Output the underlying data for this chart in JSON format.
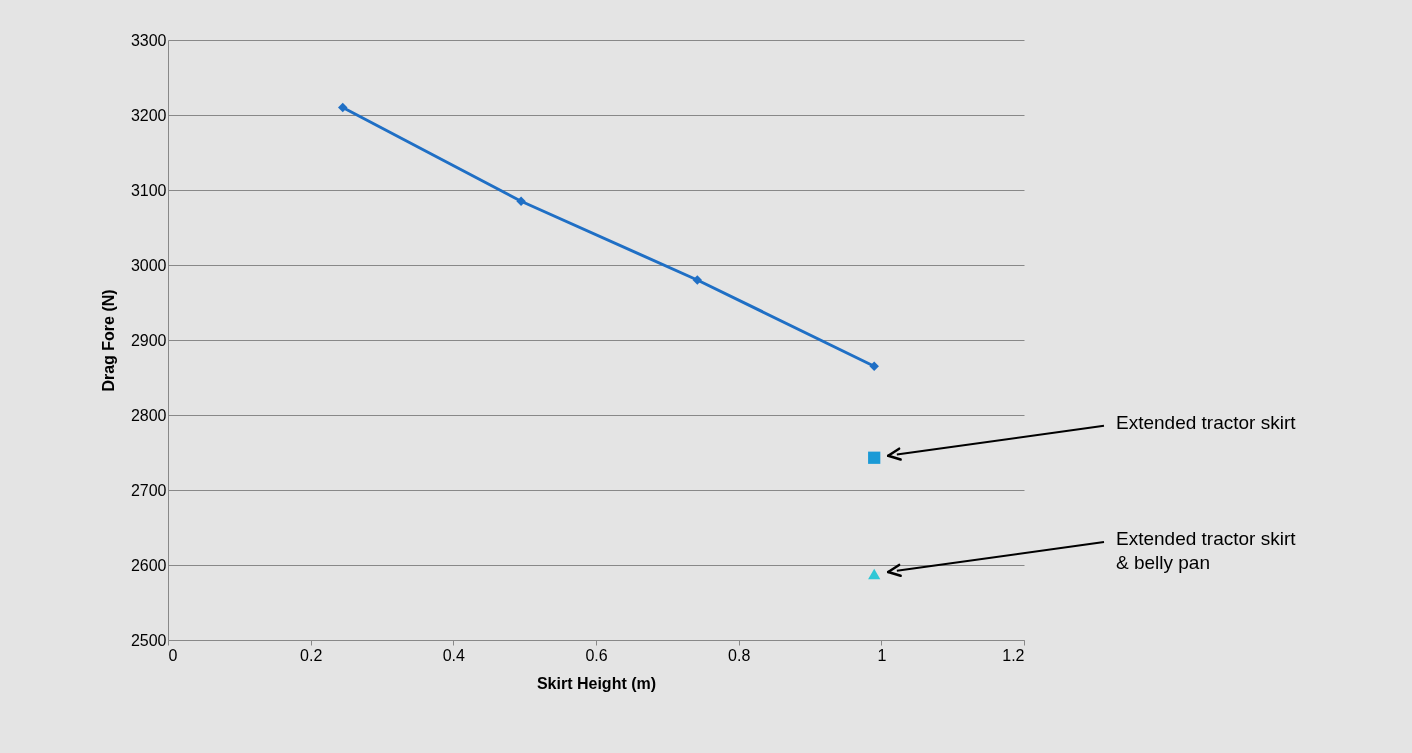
{
  "chart_data": {
    "type": "line",
    "xlabel": "Skirt Height (m)",
    "ylabel": "Drag Fore (N)",
    "xlim": [
      0,
      1.2
    ],
    "xticks": [
      0,
      0.2,
      0.4,
      0.6,
      0.8,
      1,
      1.2
    ],
    "ylim": [
      2500,
      3300
    ],
    "yticks": [
      2500,
      2600,
      2700,
      2800,
      2900,
      3000,
      3100,
      3200,
      3300
    ],
    "grid": "y",
    "series": [
      {
        "type": "line",
        "marker": "diamond",
        "color": "#1f6fc5",
        "x": [
          0.245,
          0.495,
          0.742,
          0.99
        ],
        "values": [
          3210,
          3085,
          2980,
          2865
        ]
      },
      {
        "type": "scatter",
        "marker": "square",
        "color": "#1a9ad6",
        "x": [
          0.99
        ],
        "values": [
          2743
        ]
      },
      {
        "type": "scatter",
        "marker": "triangle",
        "color": "#2ec7d6",
        "x": [
          0.99
        ],
        "values": [
          2588
        ]
      }
    ],
    "annotations": [
      "Extended tractor skirt",
      "Extended tractor skirt\n& belly pan"
    ]
  }
}
